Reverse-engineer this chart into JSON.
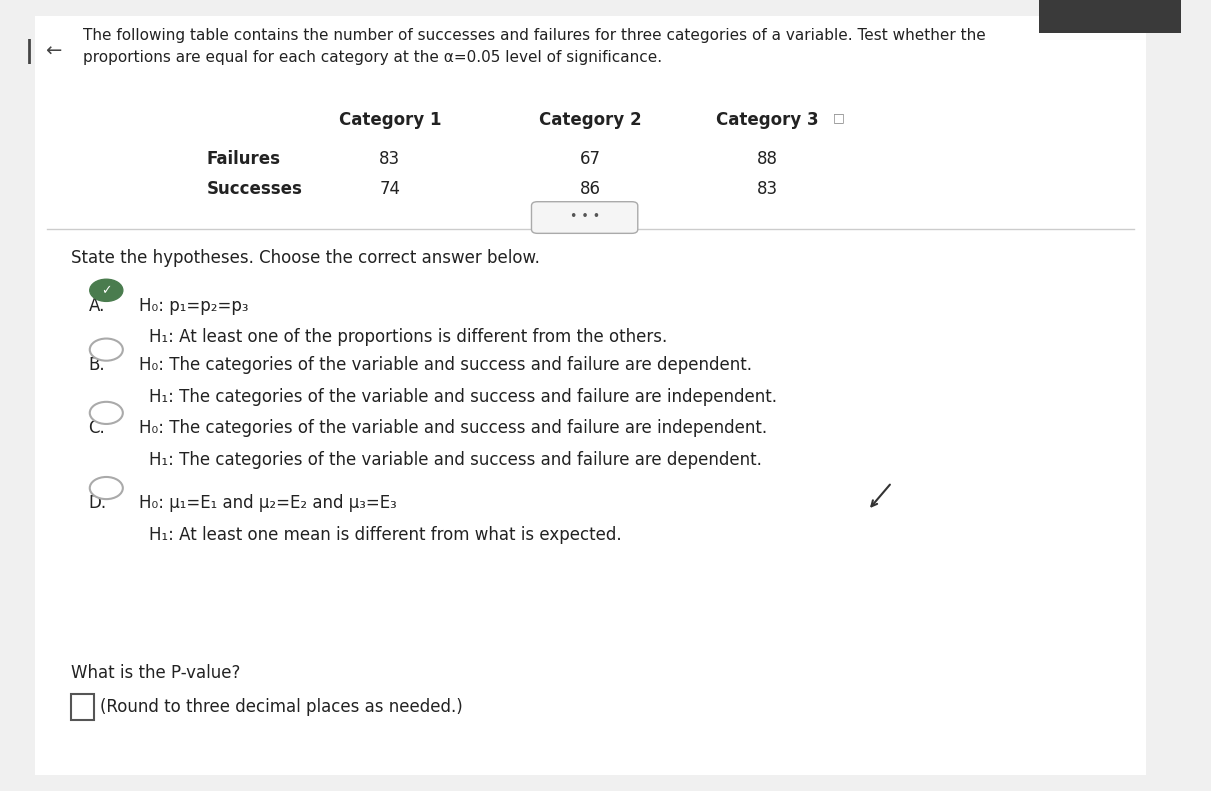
{
  "bg_color": "#f0f0f0",
  "content_bg": "#ffffff",
  "title_text": "The following table contains the number of successes and failures for three categories of a variable. Test whether the\nproportions are equal for each category at the α​=​0.05 level of significance.",
  "table_headers": [
    "Category 1",
    "Category 2",
    "Category 3"
  ],
  "row_labels": [
    "Failures",
    "Successes"
  ],
  "table_data": [
    [
      83,
      67,
      88
    ],
    [
      74,
      86,
      83
    ]
  ],
  "divider_text": "• • •",
  "hypothesis_prompt": "State the hypotheses. Choose the correct answer below.",
  "options": [
    {
      "label": "A.",
      "h0": "H₀: p₁​=​p₂​=​p₃",
      "h1": "H₁: At least one of the proportions is different from the others.",
      "selected": true
    },
    {
      "label": "B.",
      "h0": "H₀: The categories of the variable and success and failure are dependent.",
      "h1": "H₁: The categories of the variable and success and failure are independent.",
      "selected": false
    },
    {
      "label": "C.",
      "h0": "H₀: The categories of the variable and success and failure are independent.",
      "h1": "H₁: The categories of the variable and success and failure are dependent.",
      "selected": false
    },
    {
      "label": "D.",
      "h0": "H₀: μ₁​=​E₁ and μ₂​=​E₂ and μ₃​=​E₃",
      "h1": "H₁: At least one mean is different from what is expected.",
      "selected": false
    }
  ],
  "pvalue_prompt": "What is the P-value?",
  "pvalue_note": "(Round to three decimal places as needed.)",
  "text_color": "#222222",
  "selected_color": "#4a7c4e",
  "font_size_title": 11,
  "font_size_table": 12,
  "font_size_options": 12,
  "font_size_prompt": 12
}
